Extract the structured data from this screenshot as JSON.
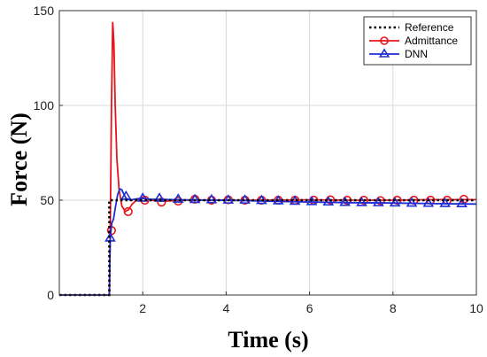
{
  "chart_data": {
    "type": "line",
    "xlabel": "Time (s)",
    "ylabel": "Force (N)",
    "xlim": [
      0,
      10
    ],
    "ylim": [
      0,
      150
    ],
    "xticks": [
      2,
      4,
      6,
      8,
      10
    ],
    "yticks": [
      0,
      50,
      100,
      150
    ],
    "grid": true,
    "legend_position": "top-right",
    "series": [
      {
        "name": "Reference",
        "color": "#000000",
        "style": "dotted",
        "marker": "none",
        "x": [
          0,
          1.2,
          1.2,
          10
        ],
        "y": [
          0,
          0,
          50,
          50
        ]
      },
      {
        "name": "Admittance",
        "color": "#e8141c",
        "style": "solid",
        "marker": "circle",
        "x": [
          0,
          1.2,
          1.22,
          1.25,
          1.28,
          1.31,
          1.34,
          1.38,
          1.43,
          1.5,
          1.58,
          1.66,
          1.75,
          1.85,
          2.0,
          2.2,
          2.5,
          3.0,
          4.0,
          5.0,
          6.0,
          7.0,
          8.0,
          9.0,
          10.0
        ],
        "y": [
          0,
          0,
          34,
          100,
          144,
          132,
          100,
          72,
          56,
          47,
          44,
          45,
          48,
          50,
          51,
          50,
          49.5,
          50,
          50,
          50,
          50.2,
          50,
          50,
          50.3,
          50.3
        ],
        "marker_x": [
          1.25,
          1.65,
          2.05,
          2.45,
          2.85,
          3.25,
          3.65,
          4.05,
          4.45,
          4.85,
          5.25,
          5.65,
          6.1,
          6.5,
          6.9,
          7.3,
          7.7,
          8.1,
          8.5,
          8.9,
          9.3,
          9.7
        ],
        "marker_y": [
          34,
          44,
          50,
          49,
          49.5,
          50.5,
          50,
          50.2,
          50,
          50,
          50,
          50,
          50,
          50.2,
          50,
          50,
          49.8,
          50,
          50,
          50,
          50,
          50.5
        ]
      },
      {
        "name": "DNN",
        "color": "#1f2ed6",
        "style": "solid",
        "marker": "triangle",
        "x": [
          0,
          1.2,
          1.22,
          1.26,
          1.3,
          1.35,
          1.4,
          1.45,
          1.5,
          1.55,
          1.6,
          1.7,
          1.8,
          1.95,
          2.2,
          3.0,
          4.0,
          5.0,
          6.0,
          7.0,
          8.0,
          9.0,
          10.0
        ],
        "y": [
          0,
          0,
          30,
          38,
          40,
          47,
          53,
          56,
          55.5,
          53,
          51,
          50,
          50.5,
          51,
          50.5,
          50.2,
          50,
          49.5,
          49,
          48.7,
          48.5,
          48.2,
          48
        ],
        "marker_x": [
          1.22,
          1.6,
          2.0,
          2.4,
          2.85,
          3.25,
          3.65,
          4.05,
          4.45,
          4.85,
          5.25,
          5.65,
          6.05,
          6.45,
          6.85,
          7.25,
          7.65,
          8.05,
          8.45,
          8.85,
          9.25,
          9.65
        ],
        "marker_y": [
          30,
          52,
          51,
          51,
          50.5,
          50.3,
          50.2,
          50,
          50,
          49.8,
          49.6,
          49.4,
          49.2,
          49,
          48.8,
          48.7,
          48.6,
          48.5,
          48.4,
          48.3,
          48.2,
          48.1
        ]
      }
    ]
  }
}
